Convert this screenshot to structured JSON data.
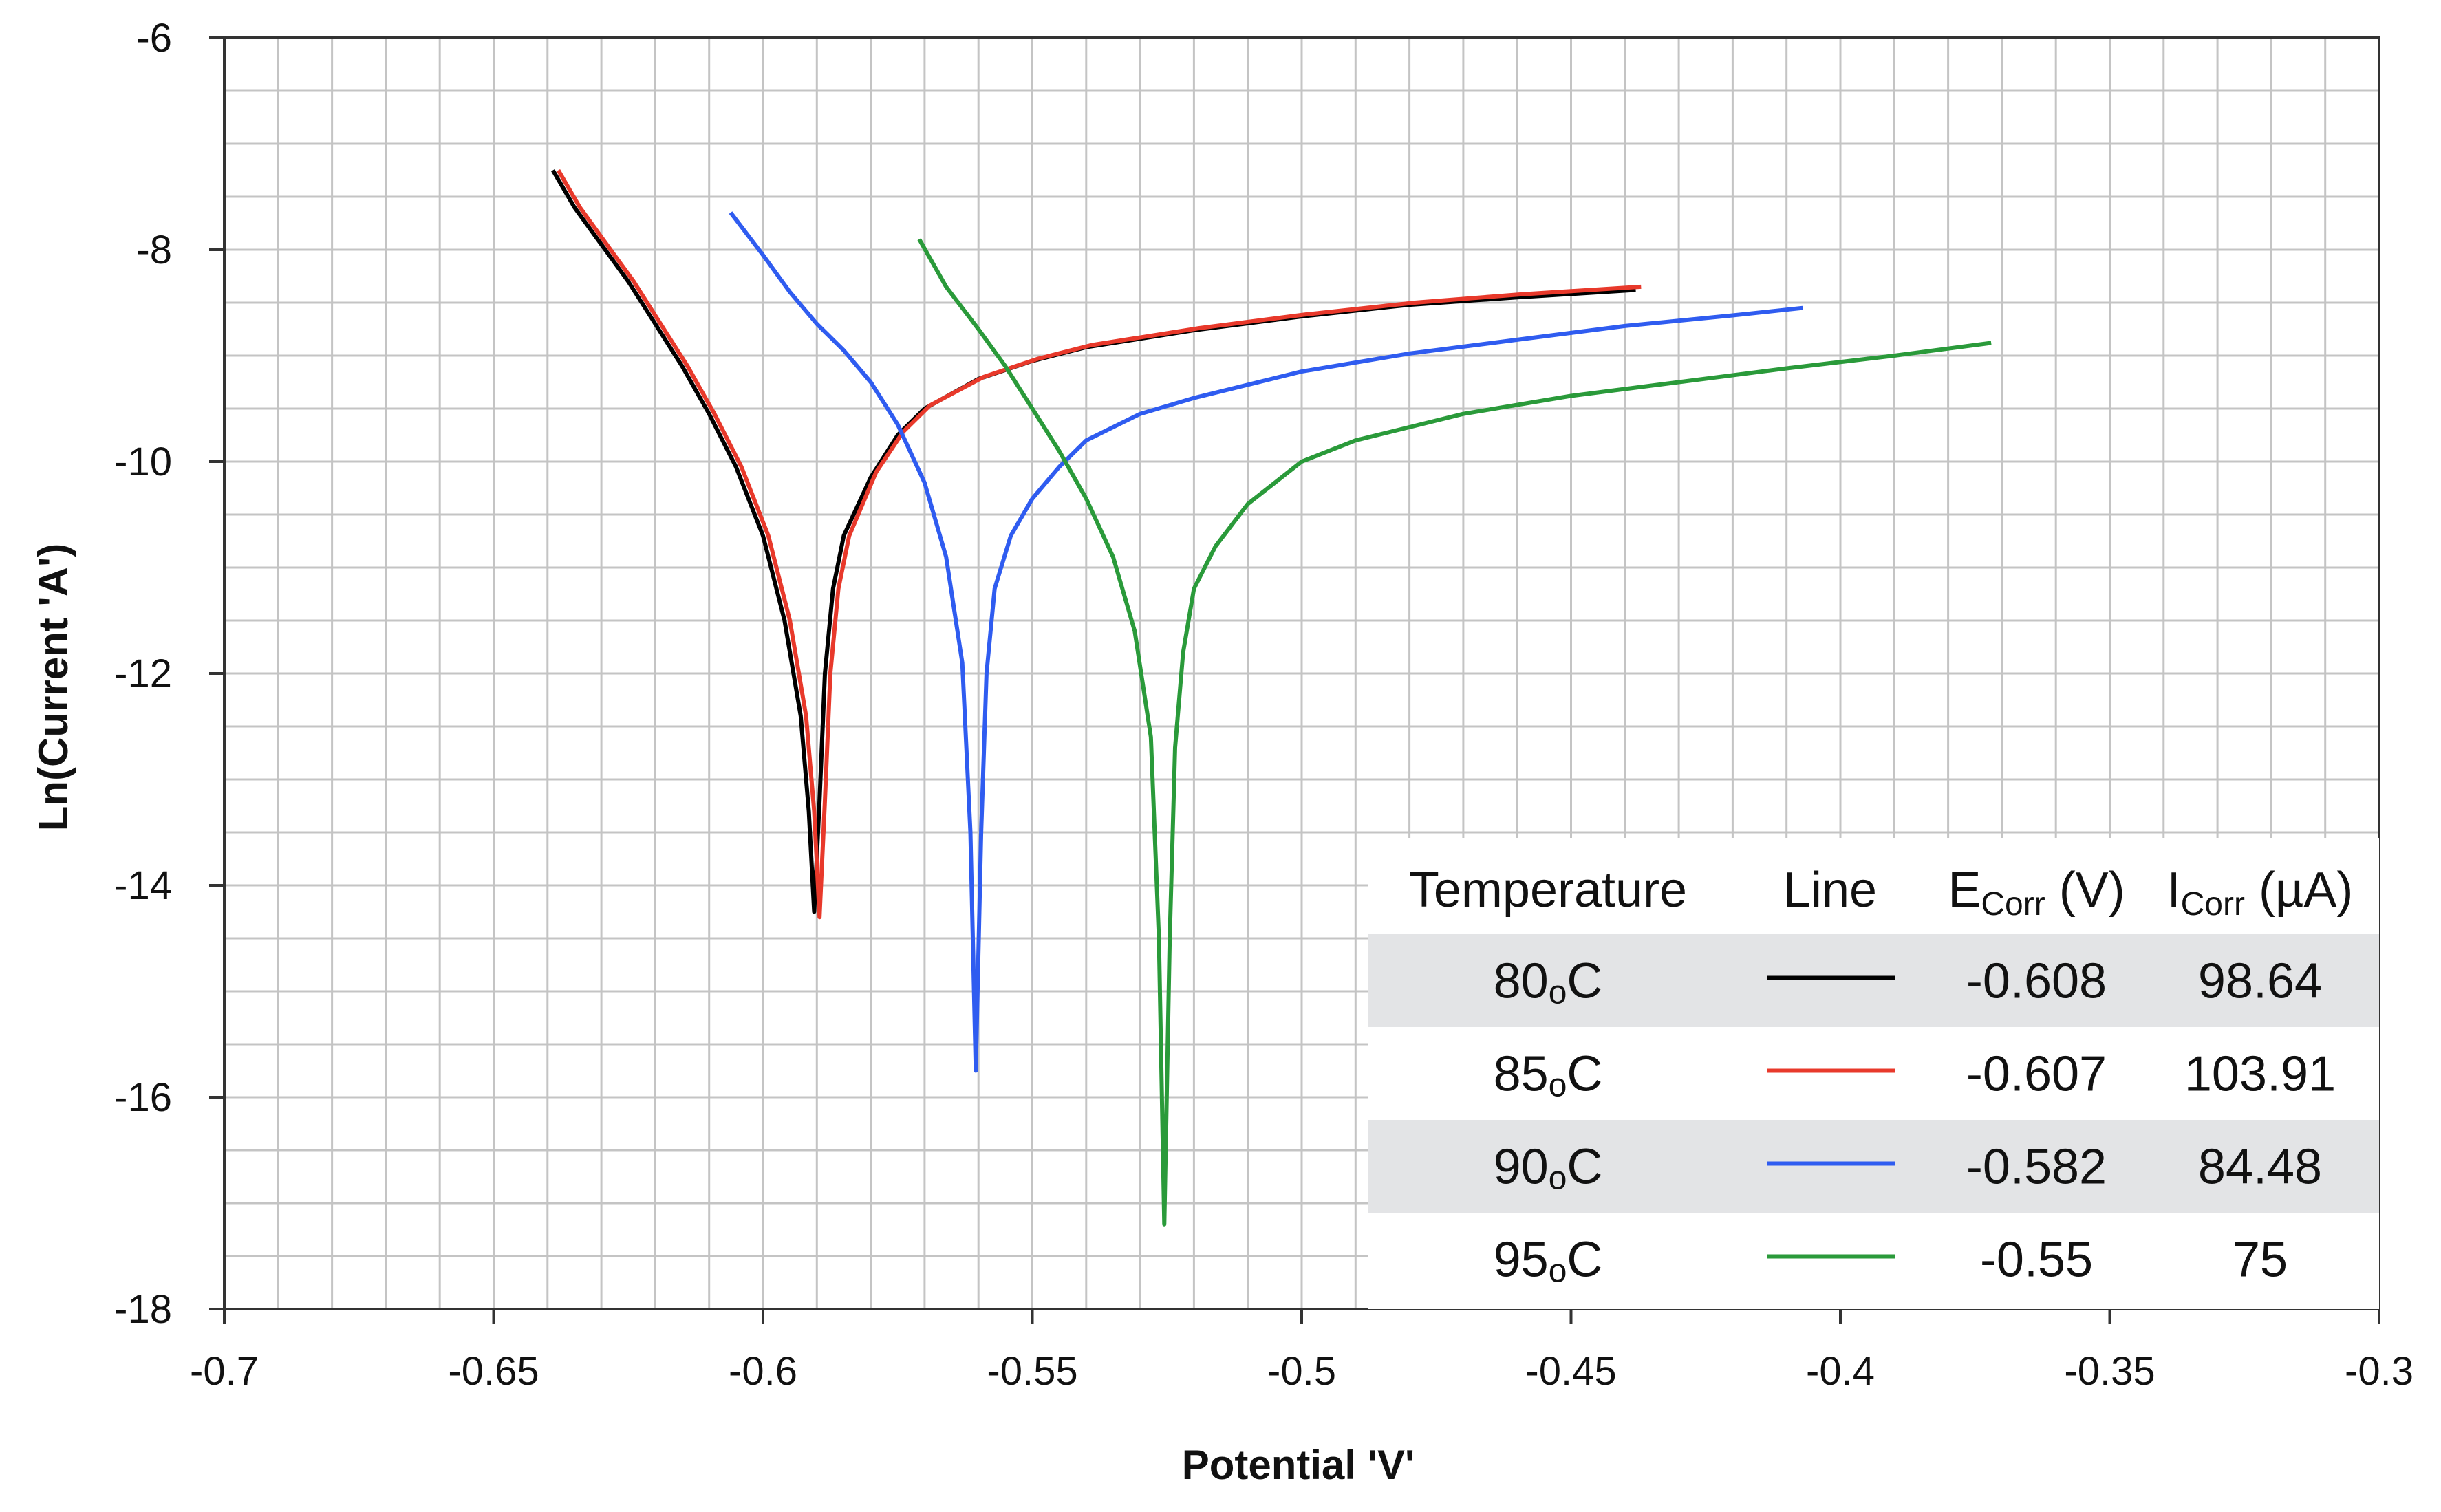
{
  "chart_data": {
    "type": "line",
    "title": "",
    "xlabel": "Potential 'V'",
    "ylabel": "Ln(Current 'A')",
    "xlim": [
      -0.7,
      -0.3
    ],
    "ylim": [
      -18,
      -6
    ],
    "x_ticks": [
      "-0.7",
      "-0.65",
      "-0.6",
      "-0.55",
      "-0.5",
      "-0.45",
      "-0.4",
      "-0.35",
      "-0.3"
    ],
    "y_ticks": [
      "-6",
      "-8",
      "-10",
      "-12",
      "-14",
      "-16",
      "-18"
    ],
    "x_tick_values": [
      -0.7,
      -0.65,
      -0.6,
      -0.55,
      -0.5,
      -0.45,
      -0.4,
      -0.35,
      -0.3
    ],
    "y_tick_values": [
      -6,
      -8,
      -10,
      -12,
      -14,
      -16,
      -18
    ],
    "grid": true,
    "grid_x_step": 0.01,
    "grid_y_step": 0.5,
    "series": [
      {
        "name": "80°C",
        "color": "#000000",
        "points": [
          [
            -0.639,
            -7.25
          ],
          [
            -0.635,
            -7.6
          ],
          [
            -0.63,
            -7.95
          ],
          [
            -0.625,
            -8.3
          ],
          [
            -0.62,
            -8.7
          ],
          [
            -0.615,
            -9.1
          ],
          [
            -0.61,
            -9.55
          ],
          [
            -0.605,
            -10.05
          ],
          [
            -0.6,
            -10.7
          ],
          [
            -0.596,
            -11.5
          ],
          [
            -0.593,
            -12.4
          ],
          [
            -0.5915,
            -13.3
          ],
          [
            -0.5905,
            -14.25
          ],
          [
            -0.5895,
            -13.2
          ],
          [
            -0.5885,
            -12.0
          ],
          [
            -0.587,
            -11.2
          ],
          [
            -0.585,
            -10.7
          ],
          [
            -0.58,
            -10.15
          ],
          [
            -0.575,
            -9.75
          ],
          [
            -0.57,
            -9.5
          ],
          [
            -0.56,
            -9.22
          ],
          [
            -0.55,
            -9.05
          ],
          [
            -0.54,
            -8.92
          ],
          [
            -0.52,
            -8.76
          ],
          [
            -0.5,
            -8.63
          ],
          [
            -0.48,
            -8.52
          ],
          [
            -0.46,
            -8.45
          ],
          [
            -0.438,
            -8.38
          ]
        ]
      },
      {
        "name": "85°C",
        "color": "#e8392b",
        "points": [
          [
            -0.638,
            -7.25
          ],
          [
            -0.634,
            -7.6
          ],
          [
            -0.629,
            -7.95
          ],
          [
            -0.624,
            -8.3
          ],
          [
            -0.619,
            -8.7
          ],
          [
            -0.614,
            -9.1
          ],
          [
            -0.609,
            -9.55
          ],
          [
            -0.604,
            -10.05
          ],
          [
            -0.599,
            -10.7
          ],
          [
            -0.595,
            -11.5
          ],
          [
            -0.592,
            -12.4
          ],
          [
            -0.5905,
            -13.3
          ],
          [
            -0.5895,
            -14.3
          ],
          [
            -0.5885,
            -13.2
          ],
          [
            -0.5875,
            -12.0
          ],
          [
            -0.586,
            -11.2
          ],
          [
            -0.584,
            -10.7
          ],
          [
            -0.579,
            -10.1
          ],
          [
            -0.574,
            -9.72
          ],
          [
            -0.569,
            -9.47
          ],
          [
            -0.559,
            -9.2
          ],
          [
            -0.549,
            -9.03
          ],
          [
            -0.539,
            -8.9
          ],
          [
            -0.519,
            -8.74
          ],
          [
            -0.499,
            -8.61
          ],
          [
            -0.479,
            -8.5
          ],
          [
            -0.459,
            -8.42
          ],
          [
            -0.437,
            -8.35
          ]
        ]
      },
      {
        "name": "90°C",
        "color": "#2f5cf0",
        "points": [
          [
            -0.606,
            -7.65
          ],
          [
            -0.6,
            -8.05
          ],
          [
            -0.595,
            -8.4
          ],
          [
            -0.59,
            -8.7
          ],
          [
            -0.585,
            -8.95
          ],
          [
            -0.58,
            -9.25
          ],
          [
            -0.575,
            -9.65
          ],
          [
            -0.57,
            -10.2
          ],
          [
            -0.566,
            -10.9
          ],
          [
            -0.563,
            -11.9
          ],
          [
            -0.5615,
            -13.5
          ],
          [
            -0.5605,
            -15.75
          ],
          [
            -0.5595,
            -13.5
          ],
          [
            -0.5585,
            -12.0
          ],
          [
            -0.557,
            -11.2
          ],
          [
            -0.554,
            -10.7
          ],
          [
            -0.55,
            -10.35
          ],
          [
            -0.545,
            -10.05
          ],
          [
            -0.54,
            -9.8
          ],
          [
            -0.53,
            -9.55
          ],
          [
            -0.52,
            -9.4
          ],
          [
            -0.5,
            -9.15
          ],
          [
            -0.48,
            -8.98
          ],
          [
            -0.46,
            -8.85
          ],
          [
            -0.44,
            -8.72
          ],
          [
            -0.42,
            -8.62
          ],
          [
            -0.407,
            -8.55
          ]
        ]
      },
      {
        "name": "95°C",
        "color": "#2a9a3a",
        "points": [
          [
            -0.571,
            -7.9
          ],
          [
            -0.566,
            -8.35
          ],
          [
            -0.56,
            -8.75
          ],
          [
            -0.555,
            -9.1
          ],
          [
            -0.55,
            -9.5
          ],
          [
            -0.545,
            -9.9
          ],
          [
            -0.54,
            -10.35
          ],
          [
            -0.535,
            -10.9
          ],
          [
            -0.531,
            -11.6
          ],
          [
            -0.528,
            -12.6
          ],
          [
            -0.5265,
            -14.5
          ],
          [
            -0.5255,
            -17.2
          ],
          [
            -0.5245,
            -14.5
          ],
          [
            -0.5235,
            -12.7
          ],
          [
            -0.522,
            -11.8
          ],
          [
            -0.52,
            -11.2
          ],
          [
            -0.516,
            -10.8
          ],
          [
            -0.51,
            -10.4
          ],
          [
            -0.5,
            -10.0
          ],
          [
            -0.49,
            -9.8
          ],
          [
            -0.47,
            -9.55
          ],
          [
            -0.45,
            -9.38
          ],
          [
            -0.43,
            -9.25
          ],
          [
            -0.41,
            -9.12
          ],
          [
            -0.39,
            -9.0
          ],
          [
            -0.372,
            -8.88
          ]
        ]
      }
    ],
    "legend_table": {
      "headers": {
        "temperature": "Temperature",
        "line": "Line",
        "ecorr_main": "E",
        "ecorr_sub": "Corr",
        "ecorr_unit": " (V)",
        "icorr_main": "I",
        "icorr_sub": "Corr",
        "icorr_unit": " (µA)"
      },
      "rows": [
        {
          "temp": "80",
          "deg": "o",
          "unit": "C",
          "color": "#000000",
          "ecorr": "-0.608",
          "icorr": "98.64"
        },
        {
          "temp": "85",
          "deg": "o",
          "unit": "C",
          "color": "#e8392b",
          "ecorr": "-0.607",
          "icorr": "103.91"
        },
        {
          "temp": "90",
          "deg": "o",
          "unit": "C",
          "color": "#2f5cf0",
          "ecorr": "-0.582",
          "icorr": "84.48"
        },
        {
          "temp": "95",
          "deg": "o",
          "unit": "C",
          "color": "#2a9a3a",
          "ecorr": "-0.55",
          "icorr": "75"
        }
      ]
    },
    "legend_placement": "bottom-right"
  }
}
